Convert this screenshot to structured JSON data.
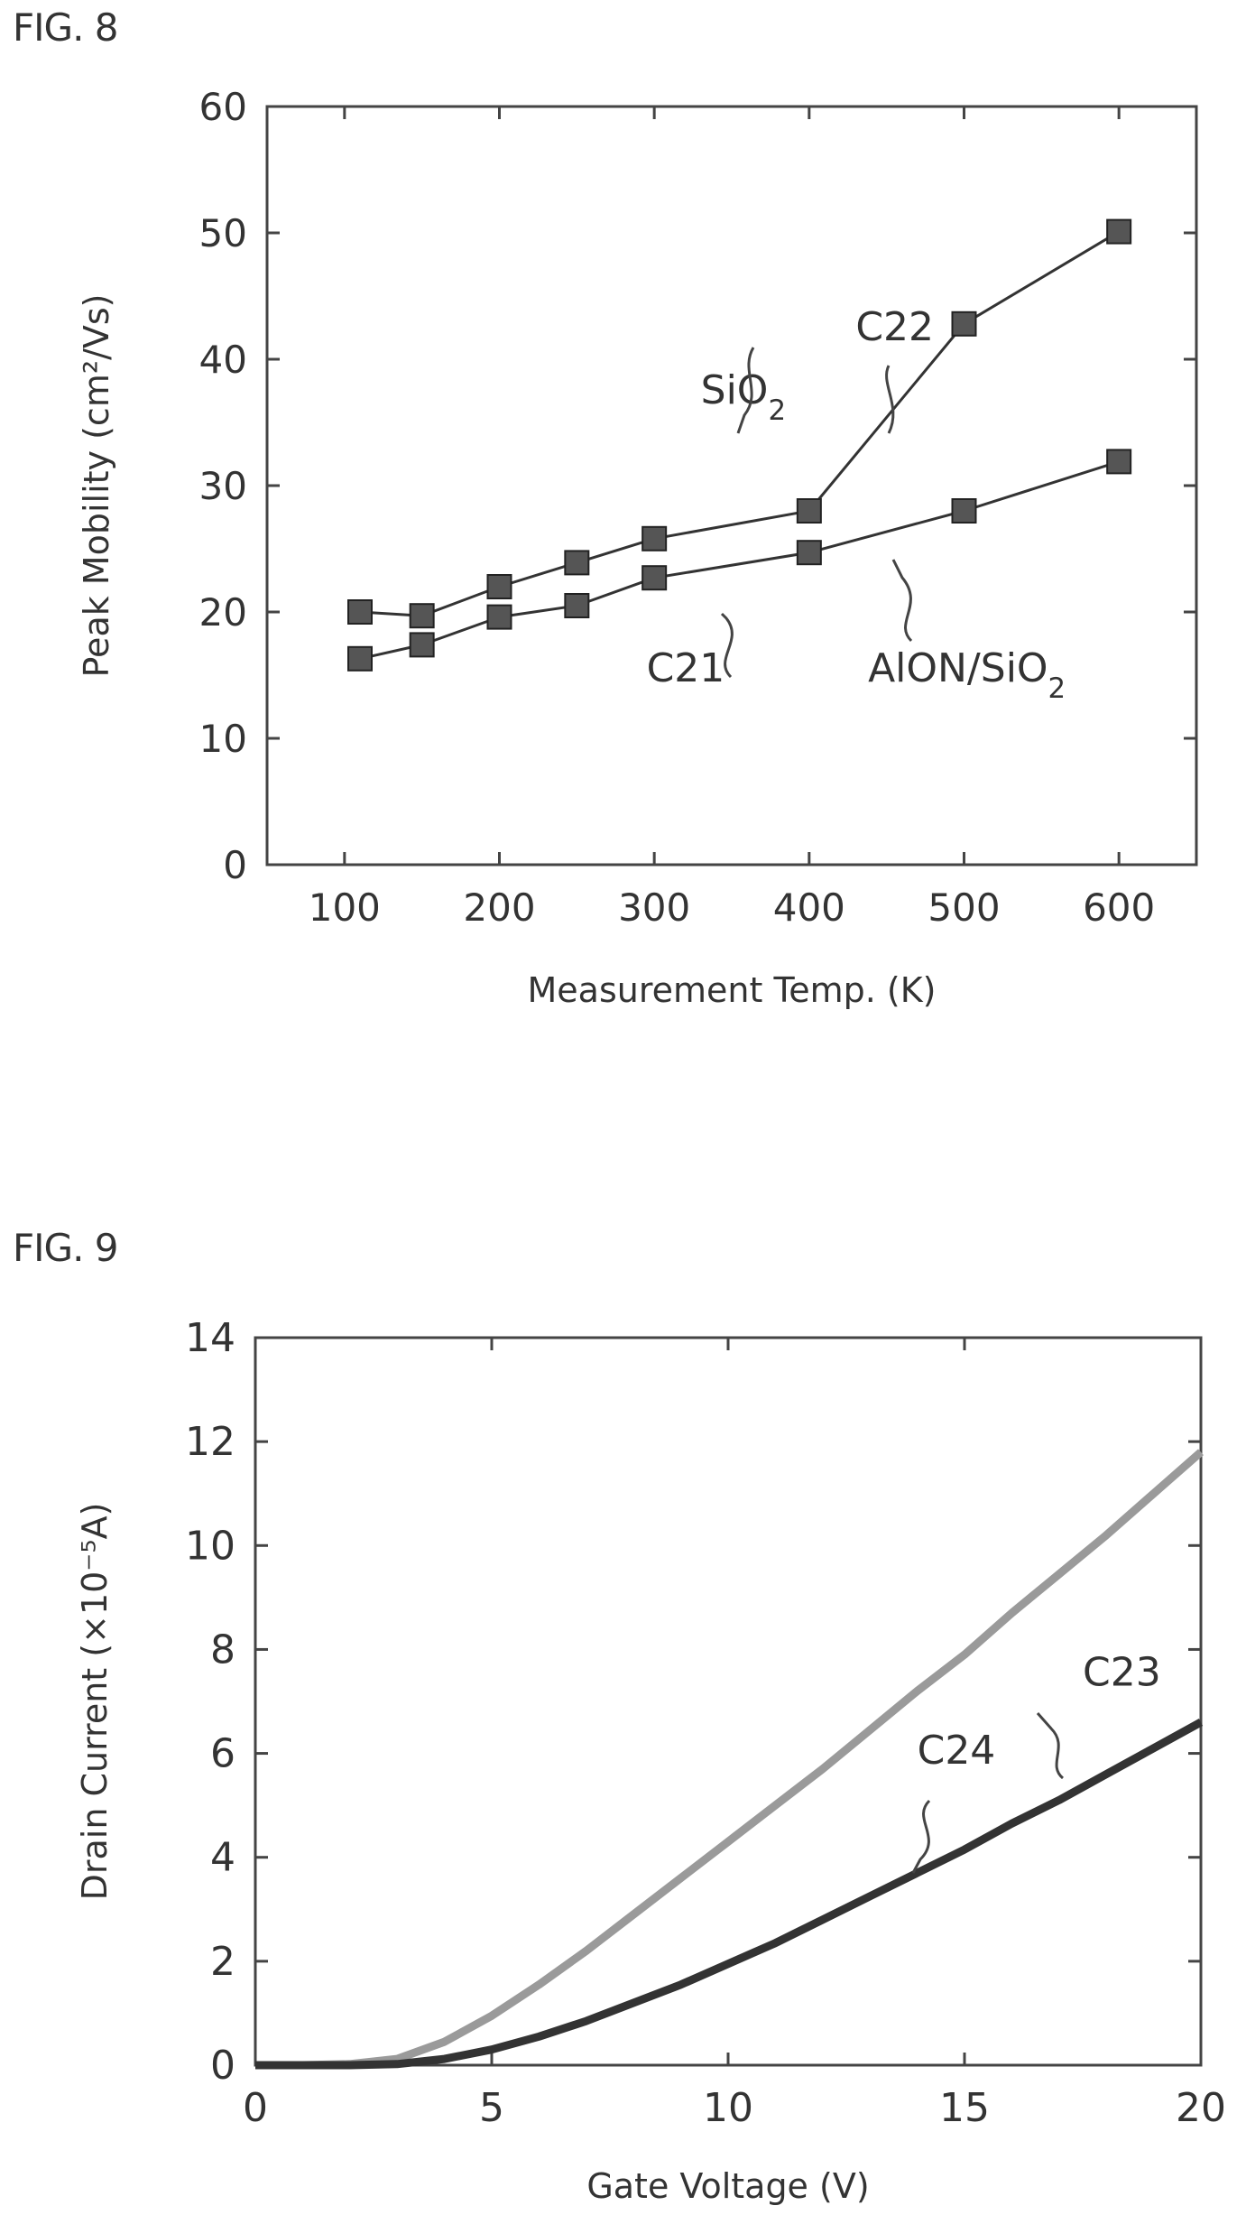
{
  "figures": [
    {
      "label": "FIG. 8",
      "chart_data": {
        "type": "line",
        "xlabel": "Measurement Temp. (K)",
        "ylabel": "Peak Mobility (cm²/Vs)",
        "xlim": [
          50,
          650
        ],
        "ylim": [
          0,
          60
        ],
        "xticks": [
          100,
          200,
          300,
          400,
          500,
          600
        ],
        "yticks": [
          0,
          10,
          20,
          30,
          40,
          50,
          60
        ],
        "grid": false,
        "series": [
          {
            "name": "SiO2",
            "x": [
              110,
              150,
              200,
              250,
              300,
              400,
              500,
              600
            ],
            "y": [
              20.0,
              19.7,
              22.0,
              23.9,
              25.8,
              28.0,
              42.8,
              50.1
            ],
            "color": "#333333"
          },
          {
            "name": "AlON/SiO2",
            "x": [
              110,
              150,
              200,
              250,
              300,
              400,
              500,
              600
            ],
            "y": [
              16.3,
              17.4,
              19.6,
              20.5,
              22.7,
              24.7,
              28.0,
              31.9
            ],
            "color": "#333333"
          }
        ],
        "annotations": [
          {
            "text": "SiO",
            "sub": "2",
            "x": 330,
            "y": 36.5
          },
          {
            "text": "C22",
            "x": 430,
            "y": 41.5
          },
          {
            "text": "C21",
            "x": 295,
            "y": 14.5
          },
          {
            "text": "AlON/SiO",
            "sub": "2",
            "x": 438,
            "y": 14.5
          }
        ]
      }
    },
    {
      "label": "FIG. 9",
      "chart_data": {
        "type": "line",
        "xlabel": "Gate Voltage (V)",
        "ylabel": "Drain Current (×10⁻⁵A)",
        "xlim": [
          0,
          20
        ],
        "ylim": [
          0,
          14
        ],
        "xticks": [
          0,
          5,
          10,
          15,
          20
        ],
        "yticks": [
          0,
          2,
          4,
          6,
          8,
          10,
          12,
          14
        ],
        "grid": false,
        "series": [
          {
            "name": "C23",
            "x": [
              0,
              1,
              2,
              3,
              4,
              5,
              6,
              7,
              8,
              9,
              10,
              11,
              12,
              13,
              14,
              15,
              16,
              17,
              18,
              19,
              20
            ],
            "y": [
              0,
              0,
              0.02,
              0.12,
              0.45,
              0.95,
              1.55,
              2.2,
              2.9,
              3.6,
              4.3,
              5.0,
              5.7,
              6.45,
              7.2,
              7.9,
              8.7,
              9.45,
              10.2,
              11.0,
              11.8
            ],
            "color": "#9a9a9a"
          },
          {
            "name": "C24",
            "x": [
              0,
              1,
              2,
              3,
              4,
              5,
              6,
              7,
              8,
              9,
              10,
              11,
              12,
              13,
              14,
              15,
              16,
              17,
              18,
              19,
              20
            ],
            "y": [
              0,
              0,
              0,
              0.02,
              0.12,
              0.3,
              0.55,
              0.85,
              1.2,
              1.55,
              1.95,
              2.35,
              2.8,
              3.25,
              3.7,
              4.15,
              4.65,
              5.1,
              5.6,
              6.1,
              6.6
            ],
            "color": "#333333"
          }
        ],
        "annotations": [
          {
            "text": "C23",
            "x": 17.5,
            "y": 7.3
          },
          {
            "text": "C24",
            "x": 14.0,
            "y": 5.8
          }
        ]
      }
    }
  ]
}
